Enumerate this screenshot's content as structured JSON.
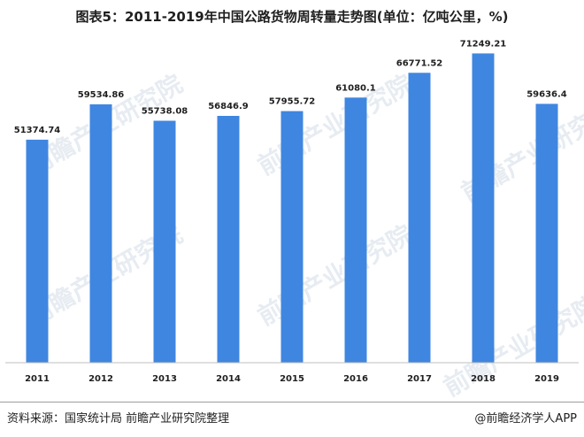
{
  "title": "图表5：2011-2019年中国公路货物周转量走势图(单位：亿吨公里，%)",
  "source": "资料来源：国家统计局 前瞻产业研究院整理",
  "brand": "@前瞻经济学人APP",
  "watermark": "前瞻产业研究院",
  "bar_color": "#3f86e0",
  "chart_data": {
    "type": "bar",
    "title": "图表5：2011-2019年中国公路货物周转量走势图(单位：亿吨公里，%)",
    "categories": [
      "2011",
      "2012",
      "2013",
      "2014",
      "2015",
      "2016",
      "2017",
      "2018",
      "2019"
    ],
    "values": [
      51374.74,
      59534.86,
      55738.08,
      56846.9,
      57955.72,
      61080.1,
      66771.52,
      71249.21,
      59636.4
    ],
    "value_labels": [
      "51374.74",
      "59534.86",
      "55738.08",
      "56846.9",
      "57955.72",
      "61080.1",
      "66771.52",
      "71249.21",
      "59636.4"
    ],
    "ylim": [
      0,
      75400
    ],
    "grid": false,
    "legend": "none"
  }
}
